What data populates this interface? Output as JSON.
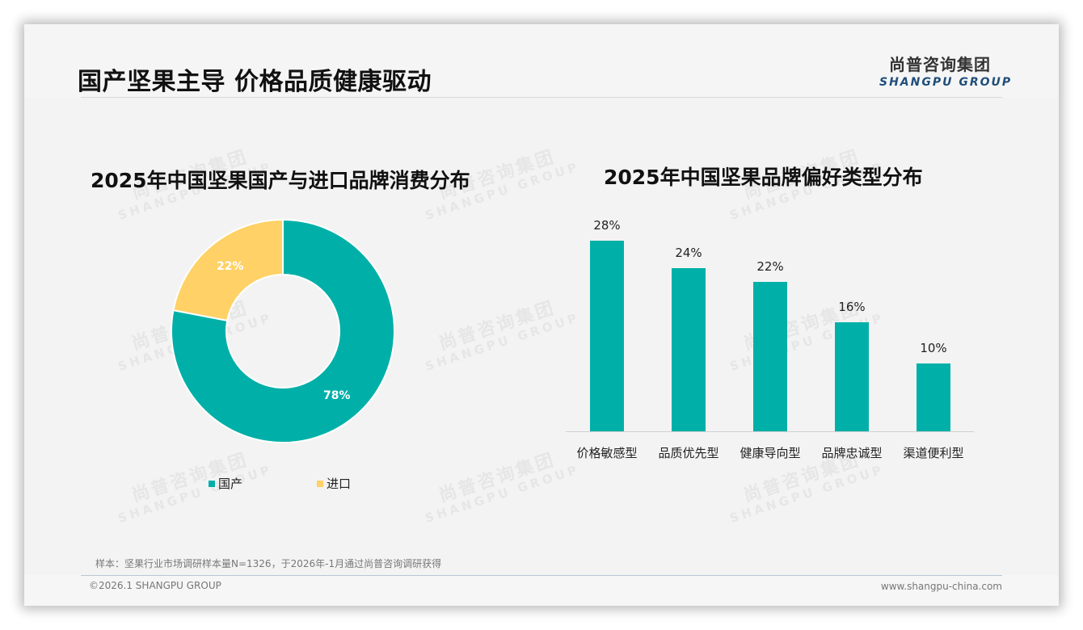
{
  "page": {
    "title": "国产坚果主导 价格品质健康驱动"
  },
  "logo": {
    "cn": "尚普咨询集团",
    "en": "SHANGPU GROUP"
  },
  "watermark": {
    "cn": "尚普咨询集团",
    "en": "SHANGPU GROUP"
  },
  "colors": {
    "teal": "#00b0a8",
    "yellow": "#ffd166",
    "brand_blue": "#1f4e79"
  },
  "left_chart": {
    "title": "2025年中国坚果国产与进口品牌消费分布",
    "slices": [
      {
        "label": "国产",
        "value": 78,
        "display": "78%",
        "color": "#00b0a8"
      },
      {
        "label": "进口",
        "value": 22,
        "display": "22%",
        "color": "#ffd166"
      }
    ],
    "legend": [
      "国产",
      "进口"
    ]
  },
  "right_chart": {
    "title": "2025年中国坚果品牌偏好类型分布",
    "bars": [
      {
        "label": "价格敏感型",
        "value": 28,
        "display": "28%"
      },
      {
        "label": "品质优先型",
        "value": 24,
        "display": "24%"
      },
      {
        "label": "健康导向型",
        "value": 22,
        "display": "22%"
      },
      {
        "label": "品牌忠诚型",
        "value": 16,
        "display": "16%"
      },
      {
        "label": "渠道便利型",
        "value": 10,
        "display": "10%"
      }
    ]
  },
  "chart_data": [
    {
      "type": "pie",
      "variant": "donut",
      "title": "2025年中国坚果国产与进口品牌消费分布",
      "categories": [
        "国产",
        "进口"
      ],
      "values": [
        78,
        22
      ],
      "unit": "%",
      "colors": [
        "#00b0a8",
        "#ffd166"
      ],
      "legend_position": "bottom"
    },
    {
      "type": "bar",
      "title": "2025年中国坚果品牌偏好类型分布",
      "categories": [
        "价格敏感型",
        "品质优先型",
        "健康导向型",
        "品牌忠诚型",
        "渠道便利型"
      ],
      "values": [
        28,
        24,
        22,
        16,
        10
      ],
      "unit": "%",
      "xlabel": "",
      "ylabel": "",
      "grid": false,
      "data_labels": true,
      "color": "#00b0a8"
    }
  ],
  "footer": {
    "source": "样本：坚果行业市场调研样本量N=1326，于2026年-1月通过尚普咨询调研获得",
    "copyright": "©2026.1 SHANGPU GROUP",
    "website": "www.shangpu-china.com"
  }
}
